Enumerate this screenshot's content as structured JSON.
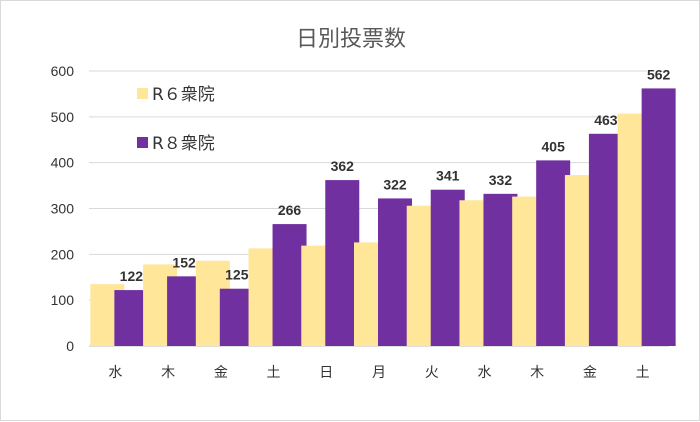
{
  "chart_data": {
    "type": "bar",
    "title": "日別投票数",
    "xlabel": "",
    "ylabel": "",
    "categories": [
      "水",
      "木",
      "金",
      "土",
      "日",
      "月",
      "火",
      "水",
      "木",
      "金",
      "土"
    ],
    "ylim": [
      0,
      600
    ],
    "yticks": [
      "0",
      "100",
      "200",
      "300",
      "400",
      "500",
      "600"
    ],
    "grid": true,
    "legend_position": "top-left",
    "series": [
      {
        "name": "R６衆院",
        "color": "#ffe699",
        "values": [
          135,
          178,
          186,
          213,
          219,
          226,
          306,
          318,
          326,
          373,
          507
        ],
        "show_labels": false
      },
      {
        "name": "R８衆院",
        "color": "#7030a0",
        "values": [
          122,
          152,
          125,
          266,
          362,
          322,
          341,
          332,
          405,
          463,
          562
        ],
        "show_labels": true
      }
    ]
  }
}
